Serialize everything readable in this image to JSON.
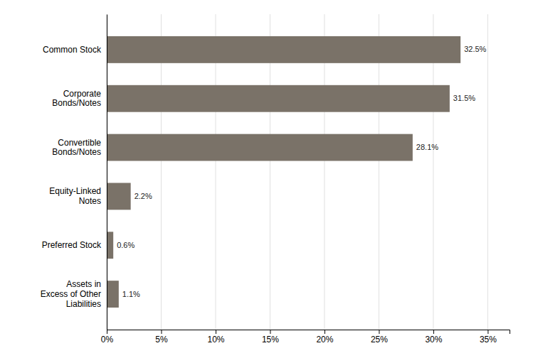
{
  "chart_data": {
    "type": "bar",
    "orientation": "horizontal",
    "categories": [
      "Assets in\nExcess of Other\nLiabilities",
      "Preferred Stock",
      "Equity-Linked\nNotes",
      "Convertible\nBonds/Notes",
      "Corporate\nBonds/Notes",
      "Common Stock"
    ],
    "values": [
      1.1,
      0.6,
      2.2,
      28.1,
      31.5,
      32.5
    ],
    "value_labels": [
      "1.1%",
      "0.6%",
      "2.2%",
      "28.1%",
      "31.5%",
      "32.5%"
    ],
    "data_labels": true,
    "color": "#7a7268",
    "xlim": [
      0,
      37
    ],
    "xticks": [
      {
        "value": 0,
        "label": "0%"
      },
      {
        "value": 5,
        "label": "5%"
      },
      {
        "value": 10,
        "label": "10%"
      },
      {
        "value": 15,
        "label": "15%"
      },
      {
        "value": 20,
        "label": "20%"
      },
      {
        "value": 25,
        "label": "25%"
      },
      {
        "value": 30,
        "label": "30%"
      },
      {
        "value": 35,
        "label": "35%"
      }
    ],
    "grid": true
  }
}
